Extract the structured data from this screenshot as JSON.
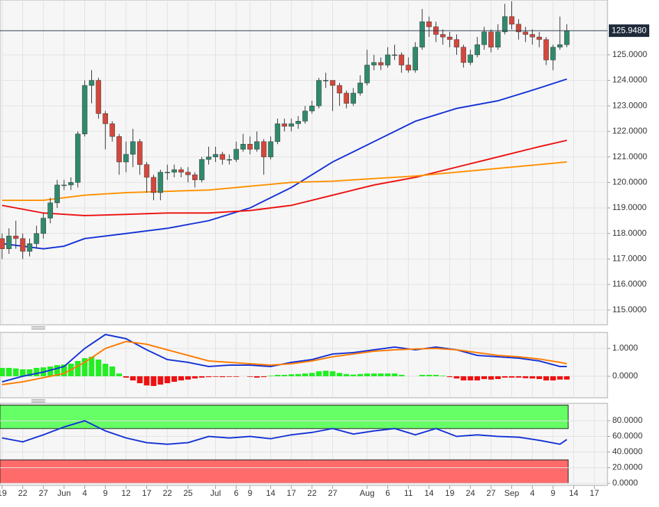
{
  "chart_data": [
    {
      "type": "candlestick",
      "open": [
        117.8,
        117.4,
        117.9,
        117.8,
        117.3,
        117.6,
        118.0,
        118.6,
        119.2,
        119.9,
        119.9,
        120.0,
        121.9,
        123.8,
        124.0,
        122.7,
        122.3,
        121.8,
        120.8,
        121.1,
        121.6,
        120.7,
        120.2,
        119.6,
        120.4,
        120.4,
        120.5,
        120.4,
        120.3,
        120.1,
        120.9,
        121.0,
        121.1,
        120.9,
        120.9,
        121.3,
        121.5,
        121.3,
        121.6,
        121.0,
        121.6,
        122.3,
        122.2,
        122.3,
        122.4,
        122.8,
        123.0,
        124.0,
        124.0,
        123.8,
        123.5,
        123.1,
        123.5,
        123.9,
        124.6,
        124.7,
        124.6,
        125.0,
        125.0,
        124.6,
        124.4,
        125.3,
        126.3,
        126.1,
        125.8,
        125.7,
        125.6,
        125.3,
        124.7,
        125.0,
        125.4,
        125.9,
        125.3,
        125.9,
        126.5,
        126.2,
        125.9,
        125.8,
        125.7,
        125.6,
        124.8,
        125.3,
        125.4
      ],
      "high": [
        118.0,
        118.2,
        118.5,
        118.0,
        117.8,
        118.3,
        118.8,
        119.4,
        120.1,
        120.1,
        120.2,
        122.0,
        124.0,
        124.4,
        124.1,
        122.8,
        122.4,
        121.9,
        121.6,
        122.1,
        121.7,
        120.8,
        120.3,
        120.5,
        120.7,
        120.7,
        120.6,
        120.6,
        120.4,
        121.0,
        121.4,
        121.4,
        121.2,
        121.1,
        121.6,
        121.9,
        121.8,
        122.0,
        121.7,
        121.8,
        122.5,
        122.5,
        122.5,
        122.6,
        123.0,
        123.2,
        124.1,
        124.3,
        124.0,
        123.9,
        123.6,
        123.7,
        124.2,
        125.2,
        125.0,
        124.9,
        125.3,
        125.4,
        125.1,
        124.9,
        125.5,
        126.8,
        126.5,
        126.3,
        126.0,
        125.9,
        125.8,
        125.4,
        125.2,
        125.7,
        126.1,
        126.0,
        126.2,
        127.0,
        127.1,
        126.4,
        126.1,
        126.0,
        125.9,
        125.7,
        125.4,
        126.5,
        126.2
      ],
      "low": [
        117.0,
        117.2,
        117.4,
        117.0,
        117.1,
        117.4,
        117.8,
        118.4,
        119.0,
        119.7,
        119.7,
        119.8,
        121.8,
        123.1,
        122.5,
        121.3,
        121.6,
        120.3,
        120.4,
        120.6,
        120.3,
        119.6,
        119.3,
        119.3,
        120.1,
        120.2,
        120.2,
        120.0,
        119.8,
        120.0,
        120.7,
        120.8,
        120.7,
        120.7,
        120.8,
        121.2,
        121.1,
        121.2,
        120.3,
        120.9,
        121.5,
        122.0,
        122.0,
        122.1,
        122.3,
        122.7,
        122.9,
        123.7,
        122.8,
        123.0,
        122.9,
        123.0,
        123.4,
        123.8,
        124.4,
        124.4,
        124.5,
        124.8,
        124.3,
        124.3,
        124.3,
        125.2,
        125.7,
        125.5,
        125.4,
        125.3,
        125.0,
        124.5,
        124.6,
        124.9,
        125.2,
        125.1,
        125.2,
        125.8,
        126.0,
        125.6,
        125.5,
        125.4,
        125.3,
        124.6,
        124.4,
        125.2,
        125.3
      ],
      "close": [
        117.4,
        117.9,
        117.8,
        117.3,
        117.6,
        118.0,
        118.6,
        119.2,
        119.9,
        119.9,
        120.0,
        121.9,
        123.8,
        124.0,
        122.7,
        122.3,
        121.8,
        120.8,
        121.1,
        121.6,
        120.7,
        120.2,
        119.6,
        120.4,
        120.4,
        120.5,
        120.4,
        120.3,
        120.1,
        120.9,
        121.0,
        121.1,
        120.9,
        120.9,
        121.3,
        121.5,
        121.3,
        121.6,
        121.0,
        121.6,
        122.3,
        122.2,
        122.3,
        122.4,
        122.8,
        123.0,
        124.0,
        124.0,
        123.8,
        123.5,
        123.1,
        123.5,
        123.9,
        124.6,
        124.7,
        124.6,
        125.0,
        125.0,
        124.6,
        124.4,
        125.3,
        126.3,
        126.1,
        125.8,
        125.7,
        125.6,
        125.3,
        124.7,
        125.0,
        125.4,
        125.9,
        125.3,
        125.9,
        126.5,
        126.2,
        125.9,
        125.8,
        125.7,
        125.6,
        124.8,
        125.3,
        125.4,
        125.948
      ],
      "up_color": "#2f8a6c",
      "down_color": "#d4473c",
      "ylim": [
        114.42,
        127.15
      ],
      "yticks": [
        {
          "value": 115,
          "label": "115.0000"
        },
        {
          "value": 116,
          "label": "116.0000"
        },
        {
          "value": 117,
          "label": "117.0000"
        },
        {
          "value": 118,
          "label": "118.0000"
        },
        {
          "value": 119,
          "label": "119.0000"
        },
        {
          "value": 120,
          "label": "120.0000"
        },
        {
          "value": 121,
          "label": "121.0000"
        },
        {
          "value": 122,
          "label": "122.0000"
        },
        {
          "value": 123,
          "label": "123.0000"
        },
        {
          "value": 124,
          "label": "124.0000"
        },
        {
          "value": 125,
          "label": "125.0000"
        }
      ],
      "last_price": {
        "value": 125.948,
        "label": "125.9480"
      },
      "xlim": [
        -0.3,
        87.9
      ],
      "xticks": [
        {
          "value": 0,
          "label": "19"
        },
        {
          "value": 3,
          "label": "22"
        },
        {
          "value": 6,
          "label": "27"
        },
        {
          "value": 9,
          "label": "Jun"
        },
        {
          "value": 12,
          "label": "4"
        },
        {
          "value": 15,
          "label": "9"
        },
        {
          "value": 18,
          "label": "12"
        },
        {
          "value": 21,
          "label": "17"
        },
        {
          "value": 24,
          "label": "22"
        },
        {
          "value": 27,
          "label": "25"
        },
        {
          "value": 31,
          "label": "Jul"
        },
        {
          "value": 34,
          "label": "6"
        },
        {
          "value": 36,
          "label": "9"
        },
        {
          "value": 39,
          "label": "14"
        },
        {
          "value": 42,
          "label": "17"
        },
        {
          "value": 45,
          "label": "22"
        },
        {
          "value": 48,
          "label": "27"
        },
        {
          "value": 53,
          "label": "Aug"
        },
        {
          "value": 56,
          "label": "6"
        },
        {
          "value": 59,
          "label": "11"
        },
        {
          "value": 62,
          "label": "14"
        },
        {
          "value": 65,
          "label": "19"
        },
        {
          "value": 68,
          "label": "24"
        },
        {
          "value": 71,
          "label": "27"
        },
        {
          "value": 74,
          "label": "Sep"
        },
        {
          "value": 77,
          "label": "4"
        },
        {
          "value": 80,
          "label": "9"
        },
        {
          "value": 83,
          "label": "14"
        },
        {
          "value": 86,
          "label": "17"
        }
      ],
      "grid": true,
      "series": [
        {
          "color": "#1533d6",
          "x": [
            0,
            6,
            9,
            12,
            18,
            24,
            30,
            36,
            42,
            48,
            54,
            60,
            66,
            72,
            78,
            82
          ],
          "values": [
            117.6,
            117.4,
            117.5,
            117.8,
            118.0,
            118.2,
            118.5,
            119.0,
            119.8,
            120.8,
            121.6,
            122.4,
            122.9,
            123.2,
            123.7,
            124.05
          ]
        },
        {
          "color": "#ee1111",
          "x": [
            0,
            6,
            12,
            18,
            24,
            30,
            36,
            42,
            48,
            54,
            60,
            66,
            72,
            78,
            82
          ],
          "values": [
            119.1,
            118.8,
            118.7,
            118.75,
            118.8,
            118.8,
            118.9,
            119.1,
            119.5,
            119.9,
            120.2,
            120.6,
            121.0,
            121.4,
            121.65
          ]
        },
        {
          "color": "#ff9200",
          "x": [
            0,
            6,
            12,
            18,
            24,
            30,
            36,
            42,
            48,
            54,
            60,
            66,
            72,
            78,
            82
          ],
          "values": [
            119.3,
            119.3,
            119.5,
            119.6,
            119.65,
            119.7,
            119.85,
            120.0,
            120.05,
            120.15,
            120.25,
            120.4,
            120.55,
            120.7,
            120.8
          ]
        }
      ]
    },
    {
      "type": "macd",
      "ylim": [
        -0.775,
        1.575
      ],
      "yticks": [
        {
          "value": 1,
          "label": "1.0000"
        },
        {
          "value": 0,
          "label": "0.0000"
        }
      ],
      "histogram": {
        "up_color": "#22ee22",
        "down_color": "#ee1111",
        "values": [
          0.3,
          0.3,
          0.28,
          0.25,
          0.25,
          0.3,
          0.32,
          0.35,
          0.4,
          0.42,
          0.45,
          0.55,
          0.65,
          0.7,
          0.6,
          0.45,
          0.35,
          0.1,
          -0.05,
          -0.15,
          -0.25,
          -0.33,
          -0.35,
          -0.3,
          -0.25,
          -0.2,
          -0.15,
          -0.12,
          -0.08,
          -0.05,
          -0.03,
          -0.02,
          -0.03,
          -0.02,
          -0.02,
          0.0,
          -0.02,
          -0.05,
          -0.03,
          0.02,
          0.05,
          0.05,
          0.07,
          0.08,
          0.1,
          0.12,
          0.18,
          0.2,
          0.18,
          0.12,
          0.08,
          0.06,
          0.08,
          0.1,
          0.1,
          0.1,
          0.1,
          0.1,
          0.05,
          0.0,
          0.0,
          0.05,
          0.05,
          0.05,
          0.02,
          -0.03,
          -0.08,
          -0.15,
          -0.15,
          -0.15,
          -0.1,
          -0.12,
          -0.1,
          -0.05,
          -0.05,
          -0.05,
          -0.07,
          -0.08,
          -0.1,
          -0.15,
          -0.15,
          -0.12,
          -0.12
        ]
      },
      "series": [
        {
          "color": "#1533d6",
          "x": [
            0,
            3,
            6,
            9,
            12,
            15,
            18,
            21,
            24,
            27,
            30,
            33,
            36,
            39,
            42,
            45,
            48,
            51,
            54,
            57,
            60,
            63,
            66,
            69,
            72,
            75,
            78,
            81,
            82
          ],
          "values": [
            -0.2,
            0.0,
            0.15,
            0.35,
            1.0,
            1.5,
            1.35,
            0.95,
            0.6,
            0.5,
            0.35,
            0.4,
            0.4,
            0.35,
            0.5,
            0.6,
            0.8,
            0.85,
            0.95,
            1.05,
            0.95,
            1.05,
            0.95,
            0.75,
            0.7,
            0.65,
            0.55,
            0.35,
            0.35
          ]
        },
        {
          "color": "#ff7a00",
          "x": [
            0,
            3,
            6,
            9,
            12,
            15,
            18,
            21,
            24,
            27,
            30,
            33,
            36,
            39,
            42,
            45,
            48,
            51,
            54,
            57,
            60,
            63,
            66,
            69,
            72,
            75,
            78,
            81,
            82
          ],
          "values": [
            -0.3,
            -0.2,
            -0.05,
            0.1,
            0.5,
            1.0,
            1.25,
            1.15,
            0.95,
            0.75,
            0.55,
            0.5,
            0.45,
            0.4,
            0.45,
            0.55,
            0.7,
            0.8,
            0.9,
            0.95,
            0.98,
            1.0,
            0.95,
            0.85,
            0.75,
            0.7,
            0.62,
            0.5,
            0.45
          ]
        }
      ]
    },
    {
      "type": "rsi",
      "ylim": [
        -2.7,
        102.2
      ],
      "yticks": [
        {
          "value": 80,
          "label": "80.0000"
        },
        {
          "value": 60,
          "label": "60.0000"
        },
        {
          "value": 40,
          "label": "40.0000"
        },
        {
          "value": 20,
          "label": "20.0000"
        },
        {
          "value": 0,
          "label": "0.0000"
        }
      ],
      "overbought": [
        70,
        100
      ],
      "overbought_color": "#66ff66",
      "oversold": [
        0,
        30
      ],
      "oversold_color": "#ff6b6b",
      "series": [
        {
          "color": "#1533d6",
          "x": [
            0,
            3,
            6,
            9,
            12,
            15,
            18,
            21,
            24,
            27,
            30,
            33,
            36,
            39,
            42,
            45,
            48,
            51,
            54,
            57,
            60,
            63,
            66,
            69,
            72,
            75,
            78,
            81,
            82
          ],
          "values": [
            58,
            53,
            62,
            72,
            80,
            67,
            58,
            52,
            50,
            52,
            60,
            58,
            60,
            57,
            62,
            65,
            70,
            63,
            67,
            70,
            62,
            70,
            60,
            62,
            60,
            59,
            55,
            50,
            56
          ]
        }
      ]
    }
  ]
}
